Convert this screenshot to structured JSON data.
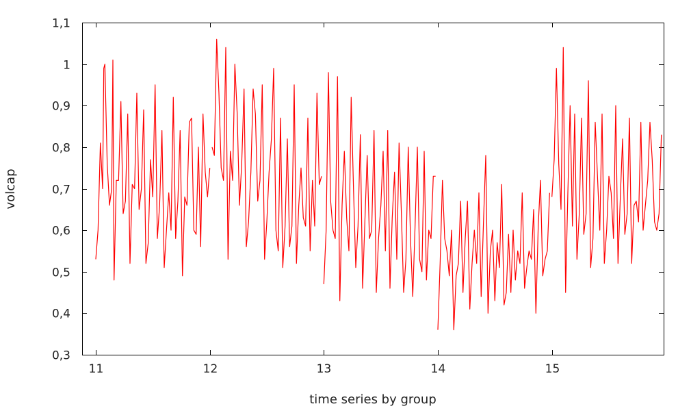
{
  "chart_data": {
    "type": "line",
    "title": "",
    "xlabel": "time series by group",
    "ylabel": "volcap",
    "xlim": [
      10.88,
      15.98
    ],
    "ylim": [
      0.3,
      1.1
    ],
    "x_ticks": [
      11,
      12,
      13,
      14,
      15
    ],
    "x_tick_labels": [
      "11",
      "12",
      "13",
      "14",
      "15"
    ],
    "y_ticks": [
      0.3,
      0.4,
      0.5,
      0.6,
      0.7,
      0.8,
      0.9,
      1.0,
      1.1
    ],
    "y_tick_labels": [
      "0,3",
      "0,4",
      "0,5",
      "0,6",
      "0,7",
      "0,8",
      "0,9",
      "1",
      "1,1"
    ],
    "grid": false,
    "colors": {
      "series": "#ff0000",
      "frame": "#000000"
    },
    "series": [
      {
        "segments": [
          {
            "group": 11,
            "x": [
              11.0,
              11.02,
              11.04,
              11.06,
              11.07,
              11.08,
              11.1,
              11.12,
              11.14,
              11.15,
              11.16,
              11.18,
              11.2,
              11.22,
              11.24,
              11.26,
              11.28,
              11.3,
              11.32,
              11.34,
              11.36,
              11.38,
              11.4,
              11.42,
              11.44,
              11.46,
              11.48,
              11.5,
              11.52,
              11.54,
              11.56,
              11.58,
              11.6,
              11.62,
              11.64,
              11.66,
              11.68,
              11.7,
              11.72,
              11.74,
              11.76,
              11.78,
              11.8,
              11.82,
              11.84,
              11.86,
              11.88,
              11.9,
              11.92,
              11.94,
              11.96,
              11.98,
              12.0
            ],
            "y": [
              0.53,
              0.6,
              0.81,
              0.7,
              0.99,
              1.0,
              0.76,
              0.66,
              0.7,
              1.01,
              0.48,
              0.72,
              0.72,
              0.91,
              0.64,
              0.67,
              0.88,
              0.52,
              0.71,
              0.7,
              0.93,
              0.65,
              0.7,
              0.89,
              0.52,
              0.57,
              0.77,
              0.68,
              0.95,
              0.58,
              0.66,
              0.84,
              0.51,
              0.6,
              0.69,
              0.6,
              0.92,
              0.58,
              0.67,
              0.84,
              0.49,
              0.68,
              0.66,
              0.86,
              0.87,
              0.6,
              0.59,
              0.8,
              0.56,
              0.88,
              0.74,
              0.68,
              0.75
            ]
          },
          {
            "group": 12,
            "x": [
              12.02,
              12.04,
              12.06,
              12.08,
              12.1,
              12.12,
              12.14,
              12.16,
              12.18,
              12.2,
              12.22,
              12.24,
              12.26,
              12.28,
              12.3,
              12.32,
              12.34,
              12.36,
              12.38,
              12.4,
              12.42,
              12.44,
              12.46,
              12.48,
              12.5,
              12.52,
              12.54,
              12.56,
              12.58,
              12.6,
              12.62,
              12.64,
              12.66,
              12.68,
              12.7,
              12.72,
              12.74,
              12.76,
              12.78,
              12.8,
              12.82,
              12.84,
              12.86,
              12.88,
              12.9,
              12.92,
              12.94,
              12.96,
              12.98
            ],
            "y": [
              0.8,
              0.78,
              1.06,
              0.93,
              0.75,
              0.72,
              1.04,
              0.53,
              0.79,
              0.72,
              1.0,
              0.88,
              0.66,
              0.76,
              0.94,
              0.56,
              0.62,
              0.74,
              0.94,
              0.88,
              0.67,
              0.72,
              0.95,
              0.53,
              0.62,
              0.74,
              0.82,
              0.99,
              0.6,
              0.55,
              0.87,
              0.51,
              0.61,
              0.82,
              0.56,
              0.61,
              0.95,
              0.52,
              0.66,
              0.75,
              0.63,
              0.61,
              0.87,
              0.55,
              0.72,
              0.61,
              0.93,
              0.71,
              0.73
            ]
          },
          {
            "group": 13,
            "x": [
              13.0,
              13.02,
              13.04,
              13.06,
              13.08,
              13.1,
              13.12,
              13.14,
              13.16,
              13.18,
              13.2,
              13.22,
              13.24,
              13.26,
              13.28,
              13.3,
              13.32,
              13.34,
              13.36,
              13.38,
              13.4,
              13.42,
              13.44,
              13.46,
              13.48,
              13.5,
              13.52,
              13.54,
              13.56,
              13.58,
              13.6,
              13.62,
              13.64,
              13.66,
              13.68,
              13.7,
              13.72,
              13.74,
              13.76,
              13.78,
              13.8,
              13.82,
              13.84,
              13.86,
              13.88,
              13.9,
              13.92,
              13.94,
              13.96,
              13.98
            ],
            "y": [
              0.47,
              0.6,
              0.98,
              0.67,
              0.6,
              0.58,
              0.97,
              0.43,
              0.66,
              0.79,
              0.63,
              0.55,
              0.92,
              0.7,
              0.51,
              0.61,
              0.83,
              0.46,
              0.62,
              0.78,
              0.58,
              0.6,
              0.84,
              0.45,
              0.58,
              0.66,
              0.79,
              0.55,
              0.84,
              0.46,
              0.63,
              0.74,
              0.53,
              0.81,
              0.64,
              0.45,
              0.53,
              0.8,
              0.58,
              0.44,
              0.61,
              0.8,
              0.53,
              0.5,
              0.79,
              0.48,
              0.6,
              0.58,
              0.73,
              0.73
            ]
          },
          {
            "group": 14,
            "x": [
              14.0,
              14.02,
              14.04,
              14.06,
              14.08,
              14.1,
              14.12,
              14.14,
              14.16,
              14.18,
              14.2,
              14.22,
              14.24,
              14.26,
              14.28,
              14.3,
              14.32,
              14.34,
              14.36,
              14.38,
              14.4,
              14.42,
              14.44,
              14.46,
              14.48,
              14.5,
              14.52,
              14.54,
              14.56,
              14.58,
              14.6,
              14.62,
              14.64,
              14.66,
              14.68,
              14.7,
              14.72,
              14.74,
              14.76,
              14.78,
              14.8,
              14.82,
              14.84,
              14.86,
              14.88,
              14.9,
              14.92,
              14.94,
              14.96,
              14.98
            ],
            "y": [
              0.36,
              0.52,
              0.72,
              0.58,
              0.55,
              0.49,
              0.6,
              0.36,
              0.49,
              0.52,
              0.67,
              0.45,
              0.58,
              0.67,
              0.41,
              0.52,
              0.6,
              0.52,
              0.69,
              0.44,
              0.62,
              0.78,
              0.4,
              0.55,
              0.6,
              0.43,
              0.57,
              0.51,
              0.71,
              0.42,
              0.45,
              0.59,
              0.45,
              0.6,
              0.48,
              0.55,
              0.52,
              0.69,
              0.46,
              0.51,
              0.55,
              0.53,
              0.65,
              0.4,
              0.61,
              0.72,
              0.49,
              0.53,
              0.55,
              0.69
            ]
          },
          {
            "group": 15,
            "x": [
              15.0,
              15.02,
              15.04,
              15.06,
              15.08,
              15.1,
              15.12,
              15.14,
              15.16,
              15.18,
              15.2,
              15.22,
              15.24,
              15.26,
              15.28,
              15.3,
              15.32,
              15.34,
              15.36,
              15.38,
              15.4,
              15.42,
              15.44,
              15.46,
              15.48,
              15.5,
              15.52,
              15.54,
              15.56,
              15.58,
              15.6,
              15.62,
              15.64,
              15.66,
              15.68,
              15.7,
              15.72,
              15.74,
              15.76,
              15.78,
              15.8,
              15.82,
              15.84,
              15.86,
              15.88,
              15.9,
              15.92,
              15.94,
              15.96
            ],
            "y": [
              0.68,
              0.77,
              0.99,
              0.76,
              0.65,
              1.04,
              0.45,
              0.69,
              0.9,
              0.61,
              0.88,
              0.53,
              0.64,
              0.87,
              0.59,
              0.64,
              0.96,
              0.51,
              0.58,
              0.86,
              0.73,
              0.6,
              0.88,
              0.52,
              0.6,
              0.73,
              0.69,
              0.58,
              0.9,
              0.52,
              0.68,
              0.82,
              0.59,
              0.64,
              0.87,
              0.52,
              0.66,
              0.67,
              0.62,
              0.86,
              0.6,
              0.66,
              0.72,
              0.86,
              0.77,
              0.62,
              0.6,
              0.64,
              0.83
            ]
          }
        ]
      }
    ]
  }
}
